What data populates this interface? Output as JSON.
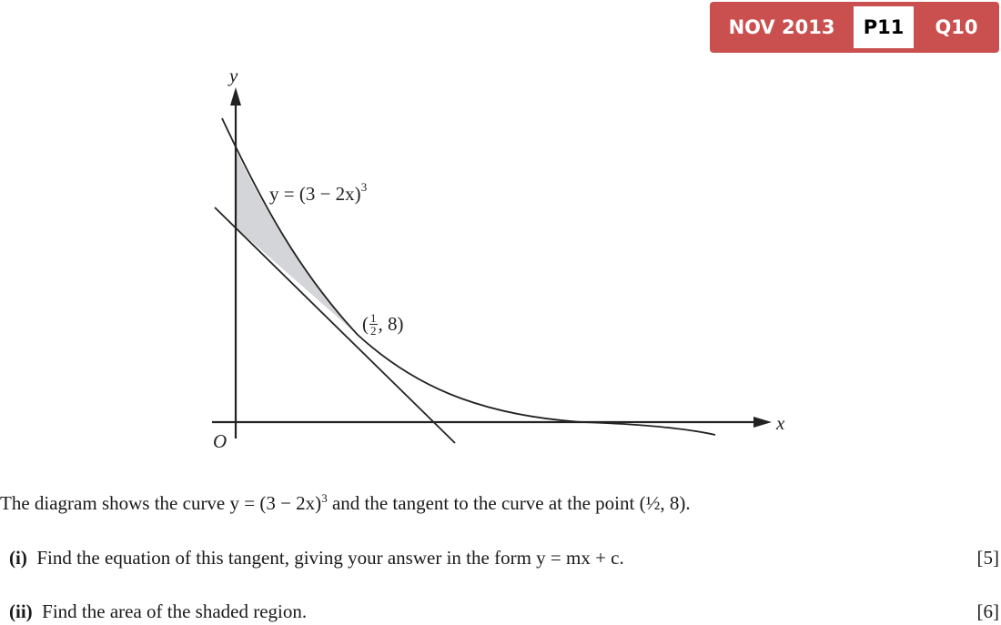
{
  "badge": {
    "session": "NOV 2013",
    "paper": "P11",
    "question": "Q10",
    "color": "#c9504e"
  },
  "diagram": {
    "y_axis_label": "y",
    "x_axis_label": "x",
    "origin_label": "O",
    "curve_label": "y = (3 − 2x)",
    "curve_label_power": "3",
    "point_label_open": "(",
    "point_label_num": "1",
    "point_label_den": "2",
    "point_label_rest": ", 8)",
    "shade_color": "#d4d5d8"
  },
  "question": {
    "intro_a": "The diagram shows the curve y = (3 − 2x)",
    "intro_power": "3",
    "intro_b": " and the tangent to the curve at the point (½, 8).",
    "parts": [
      {
        "num": "(i)",
        "text": "Find the equation of this tangent, giving your answer in the form y = mx + c.",
        "marks": "[5]"
      },
      {
        "num": "(ii)",
        "text": "Find the area of the shaded region.",
        "marks": "[6]"
      }
    ]
  }
}
